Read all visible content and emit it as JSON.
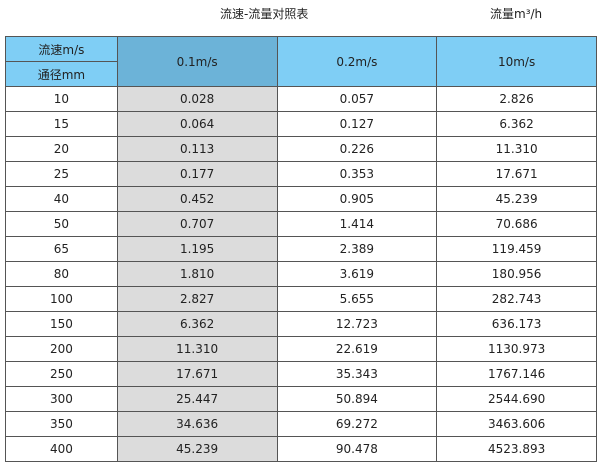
{
  "title": "流速-流量对照表",
  "unit_label": "流量m³/h",
  "header": {
    "velocity_label": "流速m/s",
    "diameter_label": "通径mm",
    "columns": [
      "0.1m/s",
      "0.2m/s",
      "10m/s"
    ]
  },
  "rows": [
    [
      "10",
      "0.028",
      "0.057",
      "2.826"
    ],
    [
      "15",
      "0.064",
      "0.127",
      "6.362"
    ],
    [
      "20",
      "0.113",
      "0.226",
      "11.310"
    ],
    [
      "25",
      "0.177",
      "0.353",
      "17.671"
    ],
    [
      "40",
      "0.452",
      "0.905",
      "45.239"
    ],
    [
      "50",
      "0.707",
      "1.414",
      "70.686"
    ],
    [
      "65",
      "1.195",
      "2.389",
      "119.459"
    ],
    [
      "80",
      "1.810",
      "3.619",
      "180.956"
    ],
    [
      "100",
      "2.827",
      "5.655",
      "282.743"
    ],
    [
      "150",
      "6.362",
      "12.723",
      "636.173"
    ],
    [
      "200",
      "11.310",
      "22.619",
      "1130.973"
    ],
    [
      "250",
      "17.671",
      "35.343",
      "1767.146"
    ],
    [
      "300",
      "25.447",
      "50.894",
      "2544.690"
    ],
    [
      "350",
      "34.636",
      "69.272",
      "3463.606"
    ],
    [
      "400",
      "45.239",
      "90.478",
      "4523.893"
    ]
  ],
  "colors": {
    "header": "#7fcef5",
    "header_selected": "#6cb3d8",
    "highlight_column": "#dcdcdc"
  }
}
